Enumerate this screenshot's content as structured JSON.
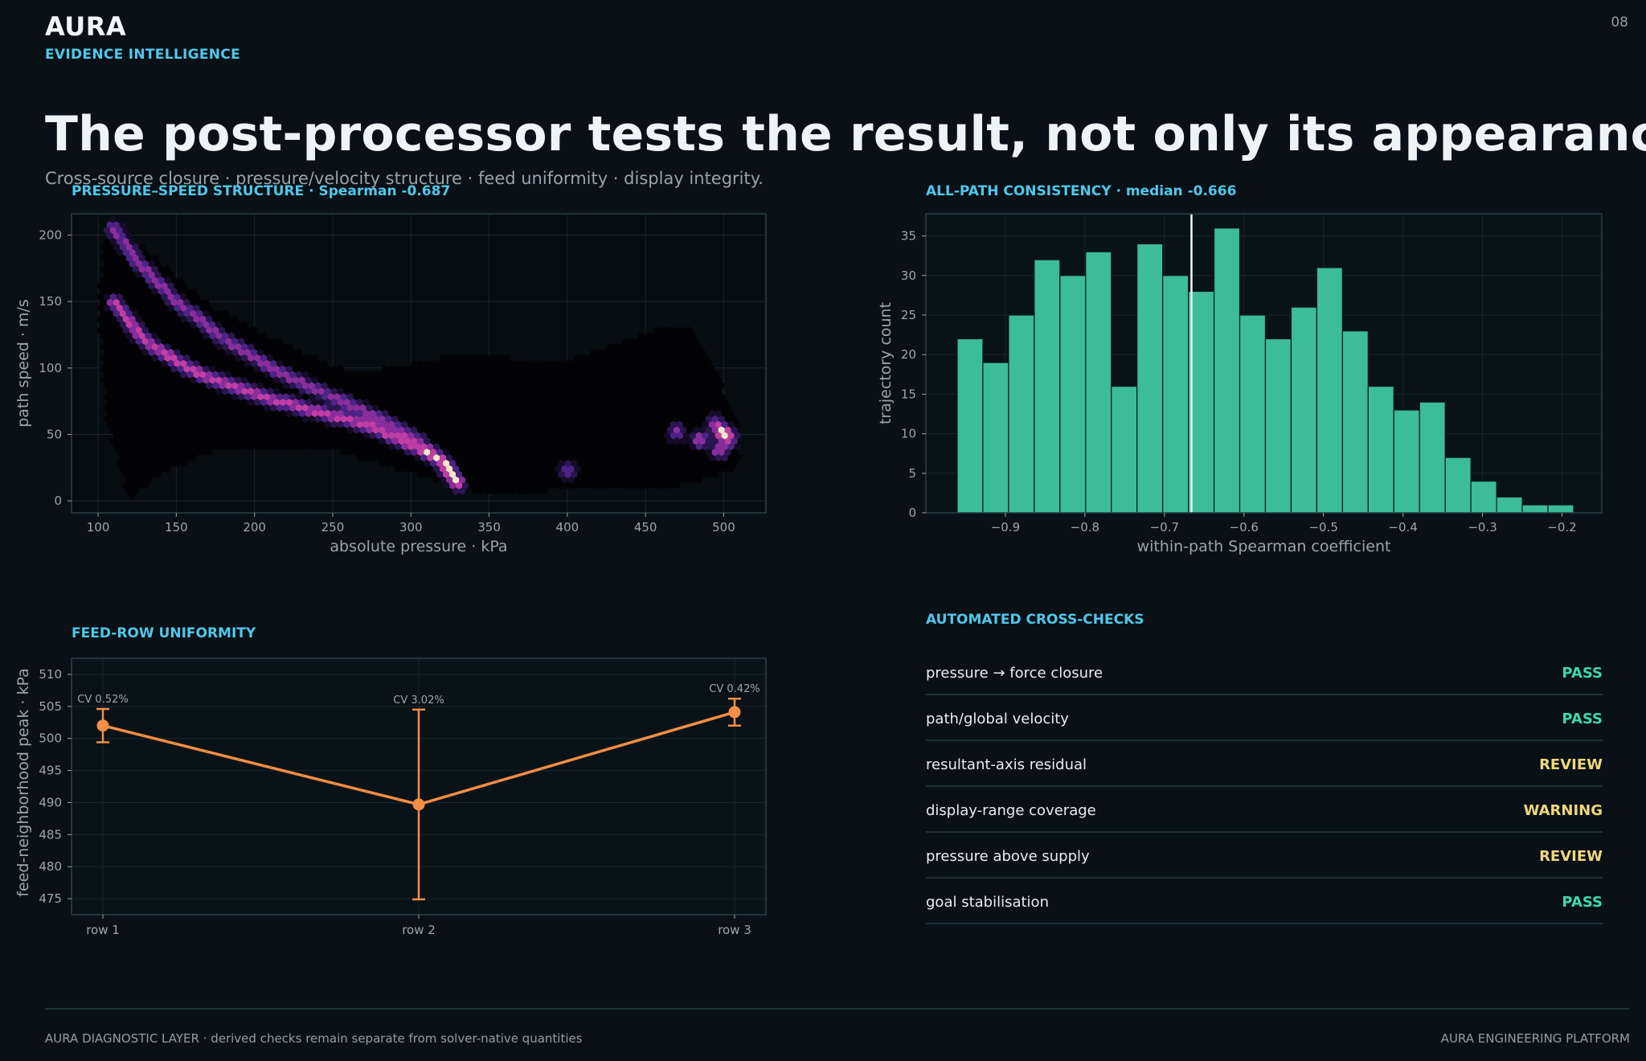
{
  "header": {
    "brand": "AURA",
    "brand_subtitle": "EVIDENCE INTELLIGENCE",
    "page_number": "08",
    "headline": "The post-processor tests the result, not only its appearance.",
    "subtitle": "Cross-source closure · pressure/velocity structure · feed uniformity · display integrity."
  },
  "colors": {
    "background": "#091016",
    "accent": "#4fc8ea",
    "pass": "#3fd9ad",
    "review": "#f0d77a",
    "histogram_bar": "#3cbc98",
    "feed_line": "#f48d46"
  },
  "chart_data": [
    {
      "id": "pressure_speed",
      "type": "heatmap",
      "title": "PRESSURE–SPEED STRUCTURE · Spearman -0.687",
      "xlabel": "absolute pressure · kPa",
      "ylabel": "path speed · m/s",
      "xlim": [
        83,
        527
      ],
      "ylim": [
        -9,
        216
      ],
      "xticks": [
        100,
        150,
        200,
        250,
        300,
        350,
        400,
        450,
        500
      ],
      "yticks": [
        0,
        50,
        100,
        150,
        200
      ],
      "grid": true,
      "density_ridges": [
        {
          "points": [
            [
              110,
              205
            ],
            [
              125,
              180
            ],
            [
              150,
              150
            ],
            [
              180,
              122
            ],
            [
              215,
              97
            ],
            [
              250,
              78
            ],
            [
              280,
              62
            ],
            [
              305,
              45
            ],
            [
              320,
              28
            ],
            [
              330,
              12
            ]
          ],
          "weight": 0.7
        },
        {
          "points": [
            [
              110,
              150
            ],
            [
              130,
              120
            ],
            [
              160,
              98
            ],
            [
              200,
              80
            ],
            [
              240,
              67
            ],
            [
              270,
              58
            ],
            [
              300,
              42
            ],
            [
              320,
              30
            ],
            [
              330,
              14
            ]
          ],
          "weight": 1.0
        }
      ],
      "density_blobs": [
        {
          "x": 470,
          "y": 52,
          "weight": 0.7
        },
        {
          "x": 485,
          "y": 46,
          "weight": 0.9
        },
        {
          "x": 495,
          "y": 58,
          "weight": 0.8
        },
        {
          "x": 497,
          "y": 38,
          "weight": 0.9
        },
        {
          "x": 503,
          "y": 46,
          "weight": 1.0
        },
        {
          "x": 500,
          "y": 51,
          "weight": 1.6
        },
        {
          "x": 400,
          "y": 23,
          "weight": 0.5
        }
      ],
      "background_regions": [
        [
          [
            103,
            195
          ],
          [
            115,
            205
          ],
          [
            140,
            180
          ],
          [
            175,
            145
          ],
          [
            230,
            112
          ],
          [
            265,
            95
          ],
          [
            330,
            110
          ],
          [
            400,
            105
          ],
          [
            460,
            130
          ],
          [
            480,
            130
          ],
          [
            510,
            60
          ],
          [
            510,
            25
          ],
          [
            470,
            10
          ],
          [
            400,
            8
          ],
          [
            345,
            5
          ],
          [
            250,
            38
          ],
          [
            180,
            40
          ],
          [
            140,
            20
          ],
          [
            120,
            0
          ],
          [
            105,
            60
          ],
          [
            100,
            145
          ]
        ]
      ]
    },
    {
      "id": "path_consistency",
      "type": "bar",
      "title": "ALL-PATH CONSISTENCY · median -0.666",
      "xlabel": "within-path Spearman coefficient",
      "ylabel": "trajectory count",
      "xlim": [
        -1.0,
        -0.15
      ],
      "ylim": [
        0,
        37.8
      ],
      "xticks": [
        -0.9,
        -0.8,
        -0.7,
        -0.6,
        -0.5,
        -0.4,
        -0.3,
        -0.2
      ],
      "xtick_labels": [
        "−0.9",
        "−0.8",
        "−0.7",
        "−0.6",
        "−0.5",
        "−0.4",
        "−0.3",
        "−0.2"
      ],
      "yticks": [
        0,
        5,
        10,
        15,
        20,
        25,
        30,
        35
      ],
      "grid": true,
      "bin_start": -0.9606,
      "bin_width": 0.0323,
      "values": [
        22,
        19,
        25,
        32,
        30,
        33,
        16,
        34,
        30,
        28,
        36,
        25,
        22,
        26,
        31,
        23,
        16,
        13,
        14,
        7,
        4,
        2,
        1,
        1
      ],
      "median": -0.666
    },
    {
      "id": "feed_uniformity",
      "type": "line",
      "title": "FEED-ROW UNIFORMITY",
      "xlabel": "",
      "ylabel": "feed-neighborhood peak · kPa",
      "categories": [
        "row 1",
        "row 2",
        "row 3"
      ],
      "ylim": [
        472.5,
        512.5
      ],
      "yticks": [
        475,
        480,
        485,
        490,
        495,
        500,
        505,
        510
      ],
      "grid": true,
      "values": [
        502,
        489.7,
        504.1
      ],
      "errors": [
        2.6,
        14.8,
        2.1
      ],
      "annotations": [
        "CV 0.52%",
        "CV 3.02%",
        "CV 0.42%"
      ]
    }
  ],
  "checks": {
    "title": "AUTOMATED CROSS-CHECKS",
    "items": [
      {
        "label": "pressure → force closure",
        "status": "PASS",
        "color": "#3fd9ad"
      },
      {
        "label": "path/global velocity",
        "status": "PASS",
        "color": "#3fd9ad"
      },
      {
        "label": "resultant-axis residual",
        "status": "REVIEW",
        "color": "#f0d77a"
      },
      {
        "label": "display-range coverage",
        "status": "WARNING",
        "color": "#f0d77a"
      },
      {
        "label": "pressure above supply",
        "status": "REVIEW",
        "color": "#f0d77a"
      },
      {
        "label": "goal stabilisation",
        "status": "PASS",
        "color": "#3fd9ad"
      }
    ]
  },
  "footer": {
    "left": "AURA DIAGNOSTIC LAYER · derived checks remain separate from solver-native quantities",
    "right": "AURA ENGINEERING PLATFORM"
  }
}
